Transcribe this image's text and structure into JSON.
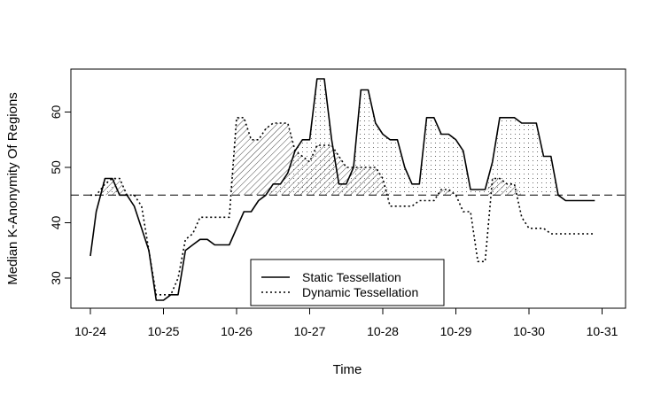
{
  "chart_data": {
    "type": "line",
    "title": "",
    "xlabel": "Time",
    "ylabel": "Median K-Anonymity Of Regions",
    "x_ticks": [
      "10-24",
      "10-25",
      "10-26",
      "10-27",
      "10-28",
      "10-29",
      "10-30",
      "10-31"
    ],
    "y_ticks": [
      30,
      40,
      50,
      60
    ],
    "xlim_days": [
      -0.25,
      7.05
    ],
    "ylim": [
      24.5,
      68.5
    ],
    "reference_line": 45,
    "grid": false,
    "legend": {
      "position": "bottom-center",
      "entries": [
        {
          "label": "Static Tessellation",
          "line": "solid"
        },
        {
          "label": "Dynamic Tessellation",
          "line": "dotted"
        }
      ]
    },
    "fill_above_reference": {
      "static_tessellation": "dotted",
      "dynamic_tessellation": "hatched"
    },
    "series": [
      {
        "name": "Static Tessellation",
        "style": "solid",
        "x": [
          0,
          0.08,
          0.2,
          0.3,
          0.4,
          0.5,
          0.6,
          0.7,
          0.8,
          0.9,
          1.0,
          1.1,
          1.2,
          1.3,
          1.4,
          1.5,
          1.6,
          1.7,
          1.8,
          1.9,
          2.0,
          2.1,
          2.2,
          2.3,
          2.4,
          2.5,
          2.6,
          2.7,
          2.8,
          2.9,
          3.0,
          3.1,
          3.2,
          3.3,
          3.4,
          3.5,
          3.6,
          3.7,
          3.8,
          3.9,
          4.0,
          4.1,
          4.2,
          4.3,
          4.4,
          4.5,
          4.6,
          4.7,
          4.8,
          4.9,
          5.0,
          5.1,
          5.2,
          5.3,
          5.4,
          5.5,
          5.6,
          5.7,
          5.8,
          5.9,
          6.0,
          6.1,
          6.2,
          6.3,
          6.4,
          6.5,
          6.6,
          6.7,
          6.8,
          6.9
        ],
        "y": [
          34,
          42,
          48,
          48,
          45,
          45,
          43,
          39,
          35,
          26,
          26,
          27,
          27,
          35,
          36,
          37,
          37,
          36,
          36,
          36,
          39,
          42,
          42,
          44,
          45,
          47,
          47,
          49,
          53,
          55,
          55,
          66,
          66,
          55,
          47,
          47,
          50,
          64,
          64,
          58,
          56,
          55,
          55,
          50,
          47,
          47,
          59,
          59,
          56,
          56,
          55,
          53,
          46,
          46,
          46,
          51,
          59,
          59,
          59,
          58,
          58,
          58,
          52,
          52,
          45,
          44,
          44,
          44,
          44,
          44
        ]
      },
      {
        "name": "Dynamic Tessellation",
        "style": "dotted",
        "x": [
          0,
          0.08,
          0.2,
          0.3,
          0.4,
          0.5,
          0.6,
          0.7,
          0.8,
          0.9,
          1.0,
          1.1,
          1.2,
          1.3,
          1.4,
          1.5,
          1.6,
          1.7,
          1.8,
          1.9,
          2.0,
          2.1,
          2.2,
          2.3,
          2.4,
          2.5,
          2.6,
          2.7,
          2.8,
          2.9,
          3.0,
          3.1,
          3.2,
          3.3,
          3.4,
          3.5,
          3.6,
          3.7,
          3.8,
          3.9,
          4.0,
          4.1,
          4.2,
          4.3,
          4.4,
          4.5,
          4.6,
          4.7,
          4.8,
          4.9,
          5.0,
          5.1,
          5.2,
          5.3,
          5.4,
          5.5,
          5.6,
          5.7,
          5.8,
          5.9,
          6.0,
          6.1,
          6.2,
          6.3,
          6.4,
          6.5,
          6.6,
          6.7,
          6.8,
          6.9
        ],
        "y": [
          45,
          45,
          47,
          48,
          48,
          45,
          45,
          43,
          35,
          27,
          27,
          27,
          30,
          37,
          38,
          41,
          41,
          41,
          41,
          41,
          59,
          59,
          55,
          55,
          57,
          58,
          58,
          58,
          53,
          52,
          51,
          54,
          54,
          54,
          52,
          50,
          50,
          50,
          50,
          50,
          48,
          43,
          43,
          43,
          43,
          44,
          44,
          44,
          46,
          46,
          45,
          42,
          42,
          33,
          33,
          48,
          48,
          47,
          47,
          41,
          39,
          39,
          39,
          38,
          38,
          38,
          38,
          38,
          38,
          38
        ]
      }
    ]
  }
}
